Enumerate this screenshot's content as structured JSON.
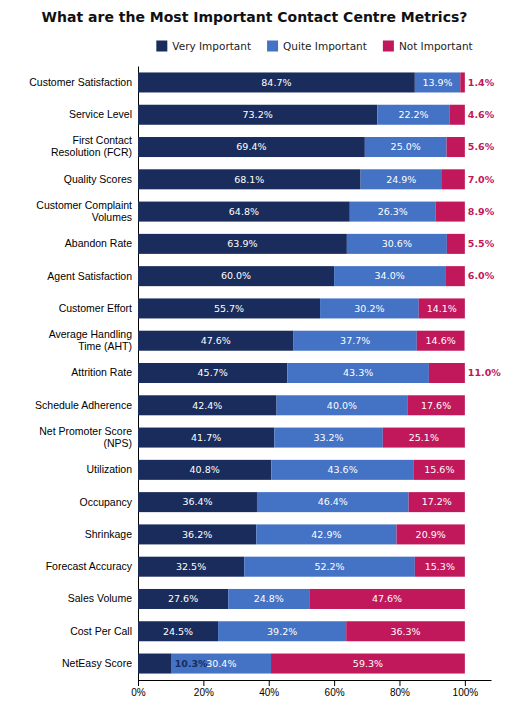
{
  "chart_data": {
    "type": "bar",
    "orientation": "horizontal",
    "stacked": true,
    "title": "What are the Most Important Contact Centre Metrics?",
    "categories": [
      "Customer Satisfaction",
      "Service Level",
      "First Contact\nResolution (FCR)",
      "Quality Scores",
      "Customer Complaint\nVolumes",
      "Abandon Rate",
      "Agent Satisfaction",
      "Customer Effort",
      "Average Handling\nTime (AHT)",
      "Attrition Rate",
      "Schedule Adherence",
      "Net Promoter Score\n(NPS)",
      "Utilization",
      "Occupancy",
      "Shrinkage",
      "Forecast Accuracy",
      "Sales Volume",
      "Cost Per Call",
      "NetEasy Score"
    ],
    "series": [
      {
        "name": "Very Important",
        "color": "#1a2c5b",
        "values": [
          84.7,
          73.2,
          69.4,
          68.1,
          64.8,
          63.9,
          60.0,
          55.7,
          47.6,
          45.7,
          42.4,
          41.7,
          40.8,
          36.4,
          36.2,
          32.5,
          27.6,
          24.5,
          10.3
        ],
        "value_labels": [
          "84.7%",
          "73.2%",
          "69.4%",
          "68.1%",
          "64.8%",
          "63.9%",
          "60.0%",
          "55.7%",
          "47.6%",
          "45.7%",
          "42.4%",
          "41.7%",
          "40.8%",
          "36.4%",
          "36.2%",
          "32.5%",
          "27.6%",
          "24.5%",
          "10.3%"
        ]
      },
      {
        "name": "Quite Important",
        "color": "#4472c4",
        "values": [
          13.9,
          22.2,
          25.0,
          24.9,
          26.3,
          30.6,
          34.0,
          30.2,
          37.7,
          43.3,
          40.0,
          33.2,
          43.6,
          46.4,
          42.9,
          52.2,
          24.8,
          39.2,
          30.4
        ],
        "value_labels": [
          "13.9%",
          "22.2%",
          "25.0%",
          "24.9%",
          "26.3%",
          "30.6%",
          "34.0%",
          "30.2%",
          "37.7%",
          "43.3%",
          "40.0%",
          "33.2%",
          "43.6%",
          "46.4%",
          "42.9%",
          "52.2%",
          "24.8%",
          "39.2%",
          "30.4%"
        ]
      },
      {
        "name": "Not Important",
        "color": "#c0185a",
        "values": [
          1.4,
          4.6,
          5.6,
          7.0,
          8.9,
          5.5,
          6.0,
          14.1,
          14.6,
          11.0,
          17.6,
          25.1,
          15.6,
          17.2,
          20.9,
          15.3,
          47.6,
          36.3,
          59.3
        ],
        "value_labels": [
          "1.4%",
          "4.6%",
          "5.6%",
          "7.0%",
          "8.9%",
          "5.5%",
          "6.0%",
          "14.1%",
          "14.6%",
          "11.0%",
          "17.6%",
          "25.1%",
          "15.6%",
          "17.2%",
          "20.9%",
          "15.3%",
          "47.6%",
          "36.3%",
          "59.3%"
        ]
      }
    ],
    "xlim": [
      0,
      108
    ],
    "xticks": [
      {
        "value": 0,
        "label": "0%"
      },
      {
        "value": 20,
        "label": "20%"
      },
      {
        "value": 40,
        "label": "40%"
      },
      {
        "value": 60,
        "label": "60%"
      },
      {
        "value": 80,
        "label": "80%"
      },
      {
        "value": 100,
        "label": "100%"
      }
    ],
    "data_labels": true,
    "legend": "top",
    "grid": false
  }
}
